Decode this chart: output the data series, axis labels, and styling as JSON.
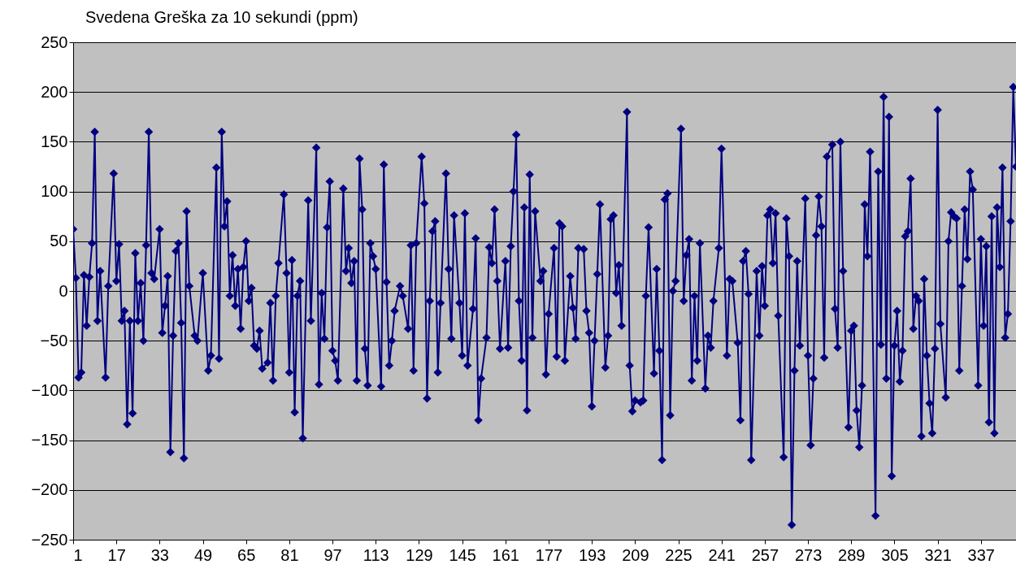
{
  "chart_data": {
    "type": "line",
    "title": "Svedena Greška za 10 sekundi (ppm)",
    "series": [
      {
        "color": "#000080",
        "x": [
          1,
          2,
          3,
          4,
          5,
          6,
          7,
          8,
          9,
          10,
          11,
          13,
          14,
          16,
          17,
          18,
          19,
          20,
          21,
          22,
          23,
          24,
          25,
          26,
          27,
          28,
          29,
          30,
          31,
          33,
          34,
          35,
          36,
          37,
          38,
          39,
          40,
          41,
          42,
          43,
          44,
          46,
          47,
          49,
          51,
          52,
          54,
          55,
          56,
          57,
          58,
          59,
          60,
          61,
          62,
          63,
          64,
          65,
          66,
          67,
          68,
          69,
          70,
          71,
          73,
          74,
          75,
          76,
          77,
          79,
          80,
          81,
          82,
          83,
          84,
          85,
          86,
          88,
          89,
          91,
          92,
          93,
          94,
          95,
          96,
          97,
          98,
          99,
          101,
          102,
          103,
          104,
          105,
          106,
          107,
          108,
          109,
          110,
          111,
          112,
          113,
          115,
          116,
          117,
          118,
          119,
          120,
          122,
          123,
          125,
          126,
          127,
          128,
          130,
          131,
          132,
          133,
          134,
          135,
          136,
          137,
          139,
          140,
          141,
          142,
          144,
          145,
          146,
          147,
          149,
          150,
          151,
          152,
          154,
          155,
          156,
          157,
          158,
          159,
          161,
          162,
          163,
          164,
          165,
          166,
          167,
          168,
          169,
          170,
          171,
          172,
          174,
          175,
          176,
          177,
          179,
          180,
          181,
          182,
          183,
          185,
          186,
          187,
          188,
          190,
          191,
          192,
          193,
          194,
          195,
          196,
          198,
          199,
          200,
          201,
          202,
          203,
          204,
          206,
          207,
          208,
          209,
          211,
          212,
          213,
          214,
          216,
          217,
          218,
          219,
          220,
          221,
          222,
          223,
          224,
          226,
          227,
          228,
          229,
          230,
          231,
          232,
          233,
          235,
          236,
          237,
          238,
          240,
          241,
          243,
          244,
          245,
          247,
          248,
          249,
          250,
          251,
          252,
          254,
          255,
          256,
          257,
          258,
          259,
          260,
          261,
          262,
          264,
          265,
          266,
          267,
          268,
          269,
          270,
          272,
          273,
          274,
          275,
          276,
          277,
          278,
          279,
          280,
          282,
          283,
          284,
          285,
          286,
          288,
          289,
          290,
          291,
          292,
          293,
          294,
          295,
          296,
          298,
          299,
          300,
          301,
          302,
          303,
          304,
          305,
          306,
          307,
          308,
          309,
          310,
          311,
          312,
          313,
          314,
          315,
          316,
          317,
          318,
          319,
          320,
          321,
          322,
          324,
          325,
          326,
          327,
          328,
          329,
          330,
          331,
          332,
          333,
          334,
          336,
          337,
          338,
          339,
          340,
          341,
          342,
          343,
          344,
          345,
          346,
          347,
          348,
          349,
          350
        ],
        "values": [
          62,
          13,
          -87,
          -82,
          16,
          -35,
          14,
          48,
          160,
          -30,
          20,
          -87,
          5,
          118,
          10,
          47,
          -30,
          -20,
          -134,
          -30,
          -123,
          38,
          -30,
          8,
          -50,
          46,
          160,
          18,
          12,
          62,
          -42,
          -15,
          15,
          -162,
          -45,
          40,
          48,
          -32,
          -168,
          80,
          5,
          -45,
          -50,
          18,
          -80,
          -65,
          124,
          -68,
          160,
          65,
          90,
          -5,
          36,
          -15,
          22,
          -38,
          24,
          50,
          -10,
          3,
          -55,
          -58,
          -40,
          -78,
          -72,
          -12,
          -90,
          -5,
          28,
          97,
          18,
          -82,
          31,
          -122,
          -5,
          10,
          -148,
          91,
          -30,
          144,
          -94,
          -2,
          -48,
          64,
          110,
          -60,
          -70,
          -90,
          103,
          20,
          43,
          8,
          30,
          -90,
          133,
          82,
          -58,
          -95,
          48,
          35,
          22,
          -96,
          127,
          9,
          -75,
          -50,
          -20,
          5,
          -5,
          -38,
          46,
          -80,
          48,
          135,
          88,
          -108,
          -10,
          60,
          70,
          -82,
          -12,
          118,
          22,
          -48,
          76,
          -12,
          -65,
          78,
          -75,
          -18,
          53,
          -130,
          -88,
          -47,
          44,
          28,
          82,
          10,
          -58,
          30,
          -57,
          45,
          100,
          157,
          -10,
          -70,
          84,
          -120,
          117,
          -47,
          80,
          10,
          20,
          -84,
          -23,
          43,
          -66,
          68,
          65,
          -70,
          15,
          -17,
          -48,
          43,
          42,
          -20,
          -42,
          -116,
          -50,
          17,
          87,
          -77,
          -45,
          72,
          76,
          -2,
          26,
          -35,
          180,
          -75,
          -121,
          -110,
          -112,
          -110,
          -5,
          64,
          -83,
          22,
          -60,
          -170,
          92,
          98,
          -125,
          0,
          10,
          163,
          -10,
          36,
          52,
          -90,
          -5,
          -70,
          48,
          -98,
          -45,
          -57,
          -10,
          43,
          143,
          -65,
          12,
          10,
          -52,
          -130,
          30,
          40,
          -3,
          -170,
          20,
          -45,
          25,
          -15,
          76,
          82,
          28,
          78,
          -25,
          -167,
          73,
          35,
          -235,
          -80,
          30,
          -55,
          93,
          -65,
          -155,
          -88,
          56,
          95,
          65,
          -67,
          135,
          147,
          -18,
          -57,
          150,
          20,
          -137,
          -40,
          -35,
          -120,
          -157,
          -95,
          87,
          35,
          140,
          -226,
          120,
          -54,
          195,
          -88,
          175,
          -186,
          -55,
          -20,
          -91,
          -60,
          55,
          60,
          113,
          -38,
          -5,
          -10,
          -146,
          12,
          -65,
          -113,
          -143,
          -58,
          182,
          -33,
          -107,
          50,
          79,
          75,
          73,
          -80,
          5,
          82,
          32,
          120,
          102,
          -95,
          52,
          -35,
          45,
          -132,
          75,
          -143,
          84,
          24,
          124,
          -47,
          -23,
          70,
          205,
          125
        ]
      }
    ],
    "xlim": [
      1,
      350
    ],
    "xticks": [
      1,
      17,
      33,
      49,
      65,
      81,
      97,
      113,
      129,
      145,
      161,
      177,
      193,
      209,
      225,
      241,
      257,
      273,
      289,
      305,
      321,
      337
    ],
    "ylim": [
      -250,
      250
    ],
    "yticks": [
      -250,
      -200,
      -150,
      -100,
      -50,
      0,
      50,
      100,
      150,
      200,
      250
    ],
    "grid": "y",
    "marker": "diamond"
  }
}
